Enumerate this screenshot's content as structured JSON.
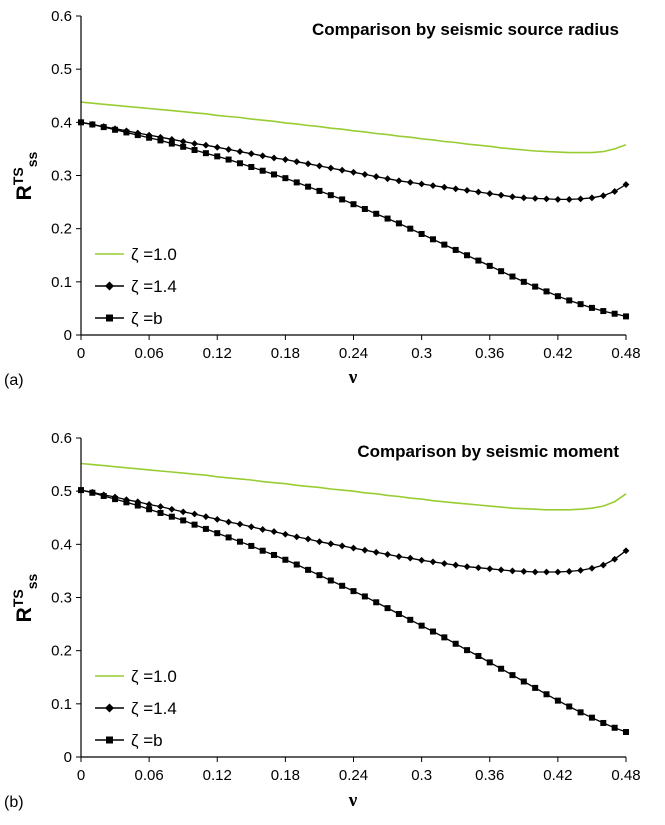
{
  "chart_data": [
    {
      "type": "line",
      "panel_label": "(a)",
      "title": "Comparison by seismic source radius",
      "ylabel": "R",
      "ylabel_sup": "TS",
      "ylabel_sub": "ss",
      "xlabel": "ν",
      "xlim": [
        0,
        0.48
      ],
      "ylim": [
        0,
        0.6
      ],
      "xticks": [
        "0",
        "0.06",
        "0.12",
        "0.18",
        "0.24",
        "0.3",
        "0.36",
        "0.42",
        "0.48"
      ],
      "yticks": [
        "0",
        "0.1",
        "0.2",
        "0.3",
        "0.4",
        "0.5",
        "0.6"
      ],
      "grid": false,
      "legend_position": "bottom-left",
      "x": [
        0,
        0.01,
        0.02,
        0.03,
        0.04,
        0.05,
        0.06,
        0.07,
        0.08,
        0.09,
        0.1,
        0.11,
        0.12,
        0.13,
        0.14,
        0.15,
        0.16,
        0.17,
        0.18,
        0.19,
        0.2,
        0.21,
        0.22,
        0.23,
        0.24,
        0.25,
        0.26,
        0.27,
        0.28,
        0.29,
        0.3,
        0.31,
        0.32,
        0.33,
        0.34,
        0.35,
        0.36,
        0.37,
        0.38,
        0.39,
        0.4,
        0.41,
        0.42,
        0.43,
        0.44,
        0.45,
        0.46,
        0.47,
        0.48
      ],
      "series": [
        {
          "name": "ζ =1.0",
          "color": "#99cc33",
          "marker": "none",
          "values": [
            0.438,
            0.436,
            0.434,
            0.432,
            0.43,
            0.428,
            0.426,
            0.424,
            0.422,
            0.42,
            0.418,
            0.416,
            0.413,
            0.411,
            0.409,
            0.406,
            0.404,
            0.402,
            0.399,
            0.397,
            0.394,
            0.392,
            0.389,
            0.387,
            0.384,
            0.382,
            0.379,
            0.377,
            0.374,
            0.372,
            0.369,
            0.367,
            0.364,
            0.362,
            0.359,
            0.357,
            0.355,
            0.352,
            0.35,
            0.348,
            0.346,
            0.345,
            0.344,
            0.343,
            0.343,
            0.343,
            0.345,
            0.35,
            0.358
          ]
        },
        {
          "name": "ζ =1.4",
          "color": "#000000",
          "marker": "diamond",
          "values": [
            0.4,
            0.396,
            0.392,
            0.388,
            0.384,
            0.38,
            0.376,
            0.372,
            0.368,
            0.364,
            0.36,
            0.357,
            0.353,
            0.349,
            0.345,
            0.341,
            0.337,
            0.333,
            0.33,
            0.326,
            0.322,
            0.318,
            0.314,
            0.31,
            0.306,
            0.302,
            0.298,
            0.294,
            0.29,
            0.287,
            0.284,
            0.281,
            0.278,
            0.275,
            0.272,
            0.269,
            0.266,
            0.263,
            0.26,
            0.258,
            0.257,
            0.256,
            0.255,
            0.255,
            0.256,
            0.258,
            0.262,
            0.27,
            0.283
          ]
        },
        {
          "name": "ζ =b",
          "color": "#000000",
          "marker": "square",
          "values": [
            0.4,
            0.396,
            0.391,
            0.386,
            0.381,
            0.376,
            0.371,
            0.366,
            0.36,
            0.354,
            0.348,
            0.342,
            0.336,
            0.33,
            0.323,
            0.316,
            0.309,
            0.302,
            0.295,
            0.287,
            0.279,
            0.271,
            0.263,
            0.255,
            0.246,
            0.237,
            0.228,
            0.219,
            0.21,
            0.2,
            0.19,
            0.18,
            0.17,
            0.16,
            0.15,
            0.14,
            0.13,
            0.12,
            0.11,
            0.1,
            0.091,
            0.082,
            0.073,
            0.065,
            0.058,
            0.051,
            0.045,
            0.04,
            0.035
          ]
        }
      ]
    },
    {
      "type": "line",
      "panel_label": "(b)",
      "title": "Comparison by seismic moment",
      "ylabel": "R",
      "ylabel_sup": "TS",
      "ylabel_sub": "ss",
      "xlabel": "ν",
      "xlim": [
        0,
        0.48
      ],
      "ylim": [
        0,
        0.6
      ],
      "xticks": [
        "0",
        "0.06",
        "0.12",
        "0.18",
        "0.24",
        "0.3",
        "0.36",
        "0.42",
        "0.48"
      ],
      "yticks": [
        "0",
        "0.1",
        "0.2",
        "0.3",
        "0.4",
        "0.5",
        "0.6"
      ],
      "grid": false,
      "legend_position": "bottom-left",
      "x": [
        0,
        0.01,
        0.02,
        0.03,
        0.04,
        0.05,
        0.06,
        0.07,
        0.08,
        0.09,
        0.1,
        0.11,
        0.12,
        0.13,
        0.14,
        0.15,
        0.16,
        0.17,
        0.18,
        0.19,
        0.2,
        0.21,
        0.22,
        0.23,
        0.24,
        0.25,
        0.26,
        0.27,
        0.28,
        0.29,
        0.3,
        0.31,
        0.32,
        0.33,
        0.34,
        0.35,
        0.36,
        0.37,
        0.38,
        0.39,
        0.4,
        0.41,
        0.42,
        0.43,
        0.44,
        0.45,
        0.46,
        0.47,
        0.48
      ],
      "series": [
        {
          "name": "ζ =1.0",
          "color": "#99cc33",
          "marker": "none",
          "values": [
            0.552,
            0.55,
            0.548,
            0.546,
            0.544,
            0.542,
            0.54,
            0.538,
            0.536,
            0.534,
            0.532,
            0.53,
            0.527,
            0.525,
            0.523,
            0.521,
            0.518,
            0.516,
            0.514,
            0.511,
            0.509,
            0.507,
            0.504,
            0.502,
            0.5,
            0.497,
            0.495,
            0.492,
            0.49,
            0.487,
            0.485,
            0.482,
            0.48,
            0.478,
            0.476,
            0.474,
            0.472,
            0.47,
            0.468,
            0.467,
            0.466,
            0.465,
            0.465,
            0.465,
            0.466,
            0.468,
            0.472,
            0.48,
            0.495
          ]
        },
        {
          "name": "ζ =1.4",
          "color": "#000000",
          "marker": "diamond",
          "values": [
            0.502,
            0.498,
            0.493,
            0.489,
            0.484,
            0.48,
            0.475,
            0.471,
            0.466,
            0.461,
            0.457,
            0.452,
            0.447,
            0.442,
            0.438,
            0.433,
            0.428,
            0.424,
            0.419,
            0.414,
            0.41,
            0.405,
            0.401,
            0.397,
            0.393,
            0.389,
            0.385,
            0.381,
            0.377,
            0.374,
            0.37,
            0.367,
            0.364,
            0.361,
            0.358,
            0.356,
            0.354,
            0.352,
            0.35,
            0.349,
            0.348,
            0.348,
            0.348,
            0.349,
            0.351,
            0.355,
            0.361,
            0.372,
            0.388
          ]
        },
        {
          "name": "ζ =b",
          "color": "#000000",
          "marker": "square",
          "values": [
            0.502,
            0.497,
            0.491,
            0.485,
            0.479,
            0.473,
            0.466,
            0.459,
            0.452,
            0.445,
            0.437,
            0.429,
            0.421,
            0.413,
            0.405,
            0.397,
            0.388,
            0.38,
            0.371,
            0.362,
            0.352,
            0.342,
            0.332,
            0.322,
            0.312,
            0.302,
            0.291,
            0.28,
            0.269,
            0.258,
            0.247,
            0.236,
            0.225,
            0.213,
            0.201,
            0.19,
            0.178,
            0.166,
            0.154,
            0.142,
            0.13,
            0.118,
            0.106,
            0.095,
            0.084,
            0.074,
            0.064,
            0.055,
            0.047
          ]
        }
      ]
    }
  ]
}
